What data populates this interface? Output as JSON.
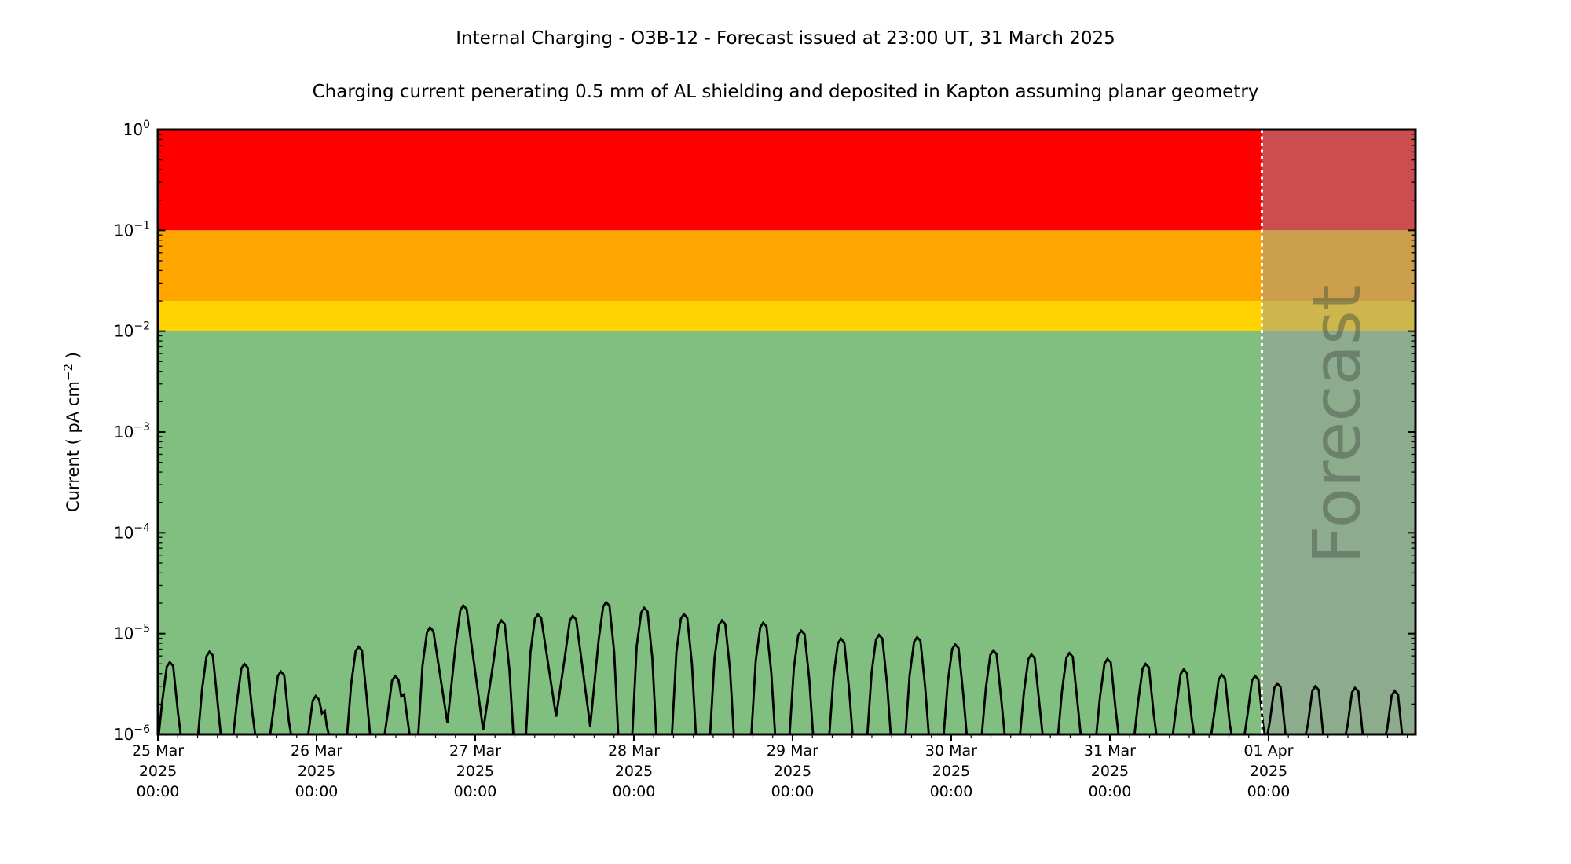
{
  "chart_data": {
    "type": "line",
    "title": "Internal Charging - O3B-12 - Forecast issued at 23:00 UT, 31 March 2025",
    "subtitle": "Charging current penerating 0.5 mm of AL shielding and deposited in Kapton assuming planar geometry",
    "ylabel": "Current ( pA cm⁻² )",
    "ylabel_parts": {
      "text": "Current ( pA cm",
      "sup": "−2",
      "tail": " )"
    },
    "xlabel": "",
    "y_scale": "log",
    "ylim": [
      1e-06,
      1
    ],
    "xlim_days": [
      0,
      7.926
    ],
    "grid": false,
    "legend": null,
    "y_ticks": [
      {
        "value": 1,
        "base": "10",
        "sup": "0"
      },
      {
        "value": 0.1,
        "base": "10",
        "sup": "−1"
      },
      {
        "value": 0.01,
        "base": "10",
        "sup": "−2"
      },
      {
        "value": 0.001,
        "base": "10",
        "sup": "−3"
      },
      {
        "value": 0.0001,
        "base": "10",
        "sup": "−4"
      },
      {
        "value": 1e-05,
        "base": "10",
        "sup": "−5"
      },
      {
        "value": 1e-06,
        "base": "10",
        "sup": "−6"
      }
    ],
    "x_ticks": [
      {
        "t": 0,
        "lines": [
          "25 Mar",
          "2025",
          "00:00"
        ]
      },
      {
        "t": 1,
        "lines": [
          "26 Mar",
          "2025",
          "00:00"
        ]
      },
      {
        "t": 2,
        "lines": [
          "27 Mar",
          "2025",
          "00:00"
        ]
      },
      {
        "t": 3,
        "lines": [
          "28 Mar",
          "2025",
          "00:00"
        ]
      },
      {
        "t": 4,
        "lines": [
          "29 Mar",
          "2025",
          "00:00"
        ]
      },
      {
        "t": 5,
        "lines": [
          "30 Mar",
          "2025",
          "00:00"
        ]
      },
      {
        "t": 6,
        "lines": [
          "31 Mar",
          "2025",
          "00:00"
        ]
      },
      {
        "t": 7,
        "lines": [
          "01 Apr",
          "2025",
          "00:00"
        ]
      }
    ],
    "x_minor_interval_days": 0.125,
    "bands": [
      {
        "name": "risk-band-red",
        "from": 0.1,
        "to": 1,
        "color": "#ff0000"
      },
      {
        "name": "risk-band-orange",
        "from": 0.02,
        "to": 0.1,
        "color": "#ffa500"
      },
      {
        "name": "risk-band-yellow",
        "from": 0.01,
        "to": 0.02,
        "color": "#ffd300"
      },
      {
        "name": "risk-band-green",
        "from": 1e-06,
        "to": 0.01,
        "color": "#80bf80"
      }
    ],
    "forecast": {
      "label": "Forecast",
      "start_t_days": 6.958,
      "issue_time": "23:00 UT, 31 March 2025",
      "divider_color": "#ffffff",
      "overlay_color": "rgba(153,153,153,0.5)",
      "label_color": "#3c463c",
      "label_opacity": 0.42
    },
    "series": [
      {
        "name": "charging-current",
        "color": "#000000",
        "units": "pA cm^-2",
        "spikes": [
          {
            "t": 0.08,
            "v": 5.2e-06
          },
          {
            "t": 0.33,
            "v": 6.6e-06
          },
          {
            "t": 0.55,
            "v": 5e-06
          },
          {
            "t": 0.78,
            "v": 4.2e-06
          },
          {
            "t": 1.0,
            "v": 2.4e-06,
            "shoulder": 1.7e-06
          },
          {
            "t": 1.27,
            "v": 7.4e-06
          },
          {
            "t": 1.5,
            "v": 3.8e-06,
            "shoulder": 2.5e-06
          },
          {
            "t": 1.72,
            "v": 1.15e-05,
            "trough": 1.3e-06
          },
          {
            "t": 1.93,
            "v": 1.9e-05,
            "trough": 1.1e-06
          },
          {
            "t": 2.17,
            "v": 1.35e-05
          },
          {
            "t": 2.4,
            "v": 1.55e-05,
            "trough": 1.5e-06
          },
          {
            "t": 2.62,
            "v": 1.5e-05,
            "trough": 1.2e-06
          },
          {
            "t": 2.83,
            "v": 2.05e-05
          },
          {
            "t": 3.07,
            "v": 1.8e-05
          },
          {
            "t": 3.32,
            "v": 1.56e-05
          },
          {
            "t": 3.56,
            "v": 1.35e-05
          },
          {
            "t": 3.82,
            "v": 1.28e-05
          },
          {
            "t": 4.06,
            "v": 1.07e-05
          },
          {
            "t": 4.31,
            "v": 8.9e-06
          },
          {
            "t": 4.55,
            "v": 9.7e-06
          },
          {
            "t": 4.79,
            "v": 9.2e-06
          },
          {
            "t": 5.03,
            "v": 7.8e-06
          },
          {
            "t": 5.27,
            "v": 6.8e-06
          },
          {
            "t": 5.51,
            "v": 6.2e-06
          },
          {
            "t": 5.75,
            "v": 6.4e-06
          },
          {
            "t": 5.99,
            "v": 5.6e-06
          },
          {
            "t": 6.23,
            "v": 5e-06
          },
          {
            "t": 6.47,
            "v": 4.4e-06
          },
          {
            "t": 6.71,
            "v": 3.9e-06
          },
          {
            "t": 6.92,
            "v": 3.8e-06
          },
          {
            "t": 7.06,
            "v": 3.2e-06
          },
          {
            "t": 7.3,
            "v": 3e-06
          },
          {
            "t": 7.55,
            "v": 2.9e-06
          },
          {
            "t": 7.8,
            "v": 2.7e-06
          }
        ]
      }
    ]
  }
}
